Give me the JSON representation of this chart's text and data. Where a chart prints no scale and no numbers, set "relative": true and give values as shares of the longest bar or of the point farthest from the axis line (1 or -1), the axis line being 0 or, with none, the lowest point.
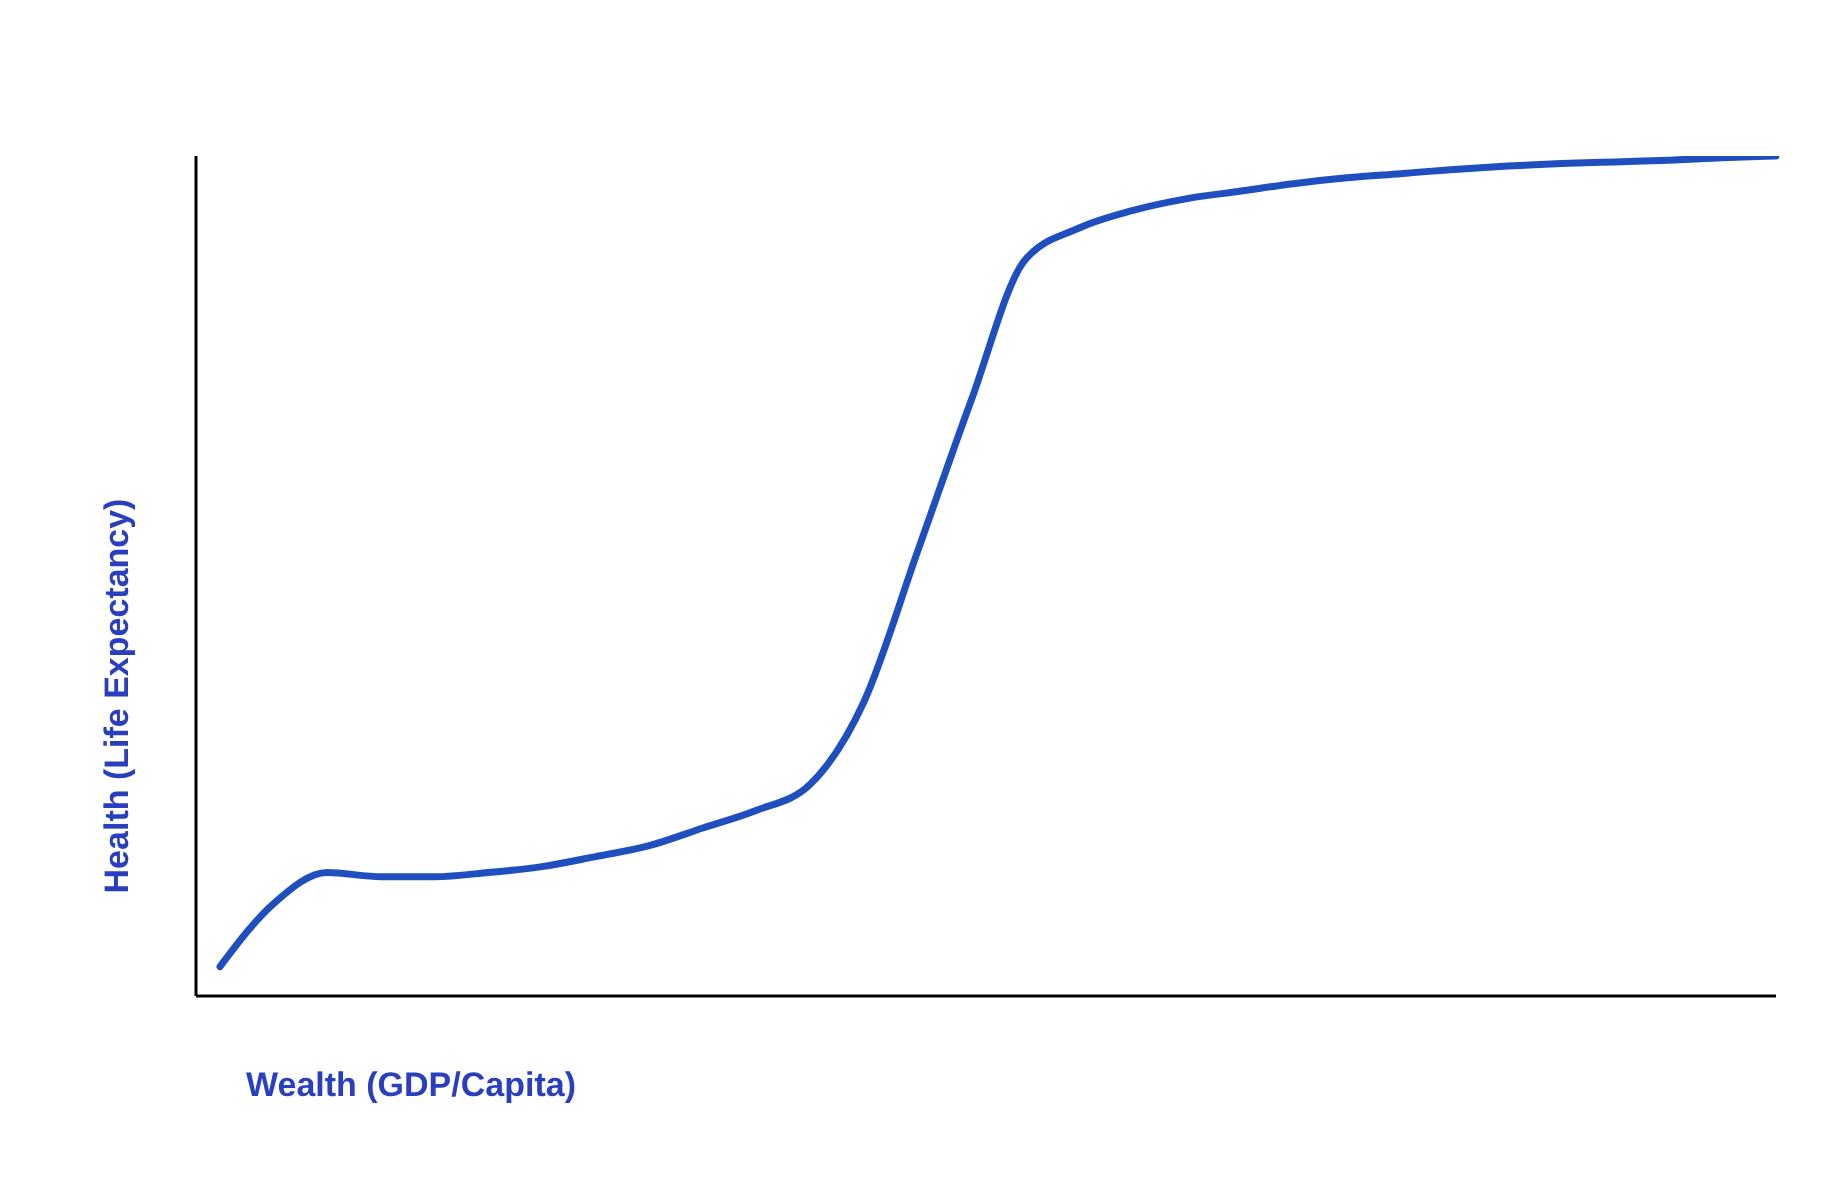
{
  "chart_data": {
    "type": "line",
    "xlabel": "Wealth  (GDP/Capita)",
    "ylabel": "Health (Life Expectancy)",
    "relative": true,
    "categories": [
      null,
      null,
      null,
      null,
      null,
      null,
      null,
      null,
      null,
      null,
      null,
      null,
      null,
      null,
      null,
      null,
      null,
      null,
      null,
      null,
      null,
      null,
      null,
      null,
      null,
      null,
      null,
      null,
      null,
      null
    ],
    "series": [
      {
        "color": "#1f4fbf",
        "values": [
          0.035,
          0.11,
          0.147,
          0.142,
          0.142,
          0.147,
          0.154,
          0.166,
          0.179,
          0.2,
          0.221,
          0.252,
          0.35,
          0.529,
          0.709,
          0.876,
          0.914,
          0.935,
          0.949,
          0.958,
          0.967,
          0.974,
          0.979,
          0.984,
          0.988,
          0.991,
          0.993,
          0.995,
          0.998,
          1
        ]
      }
    ]
  }
}
